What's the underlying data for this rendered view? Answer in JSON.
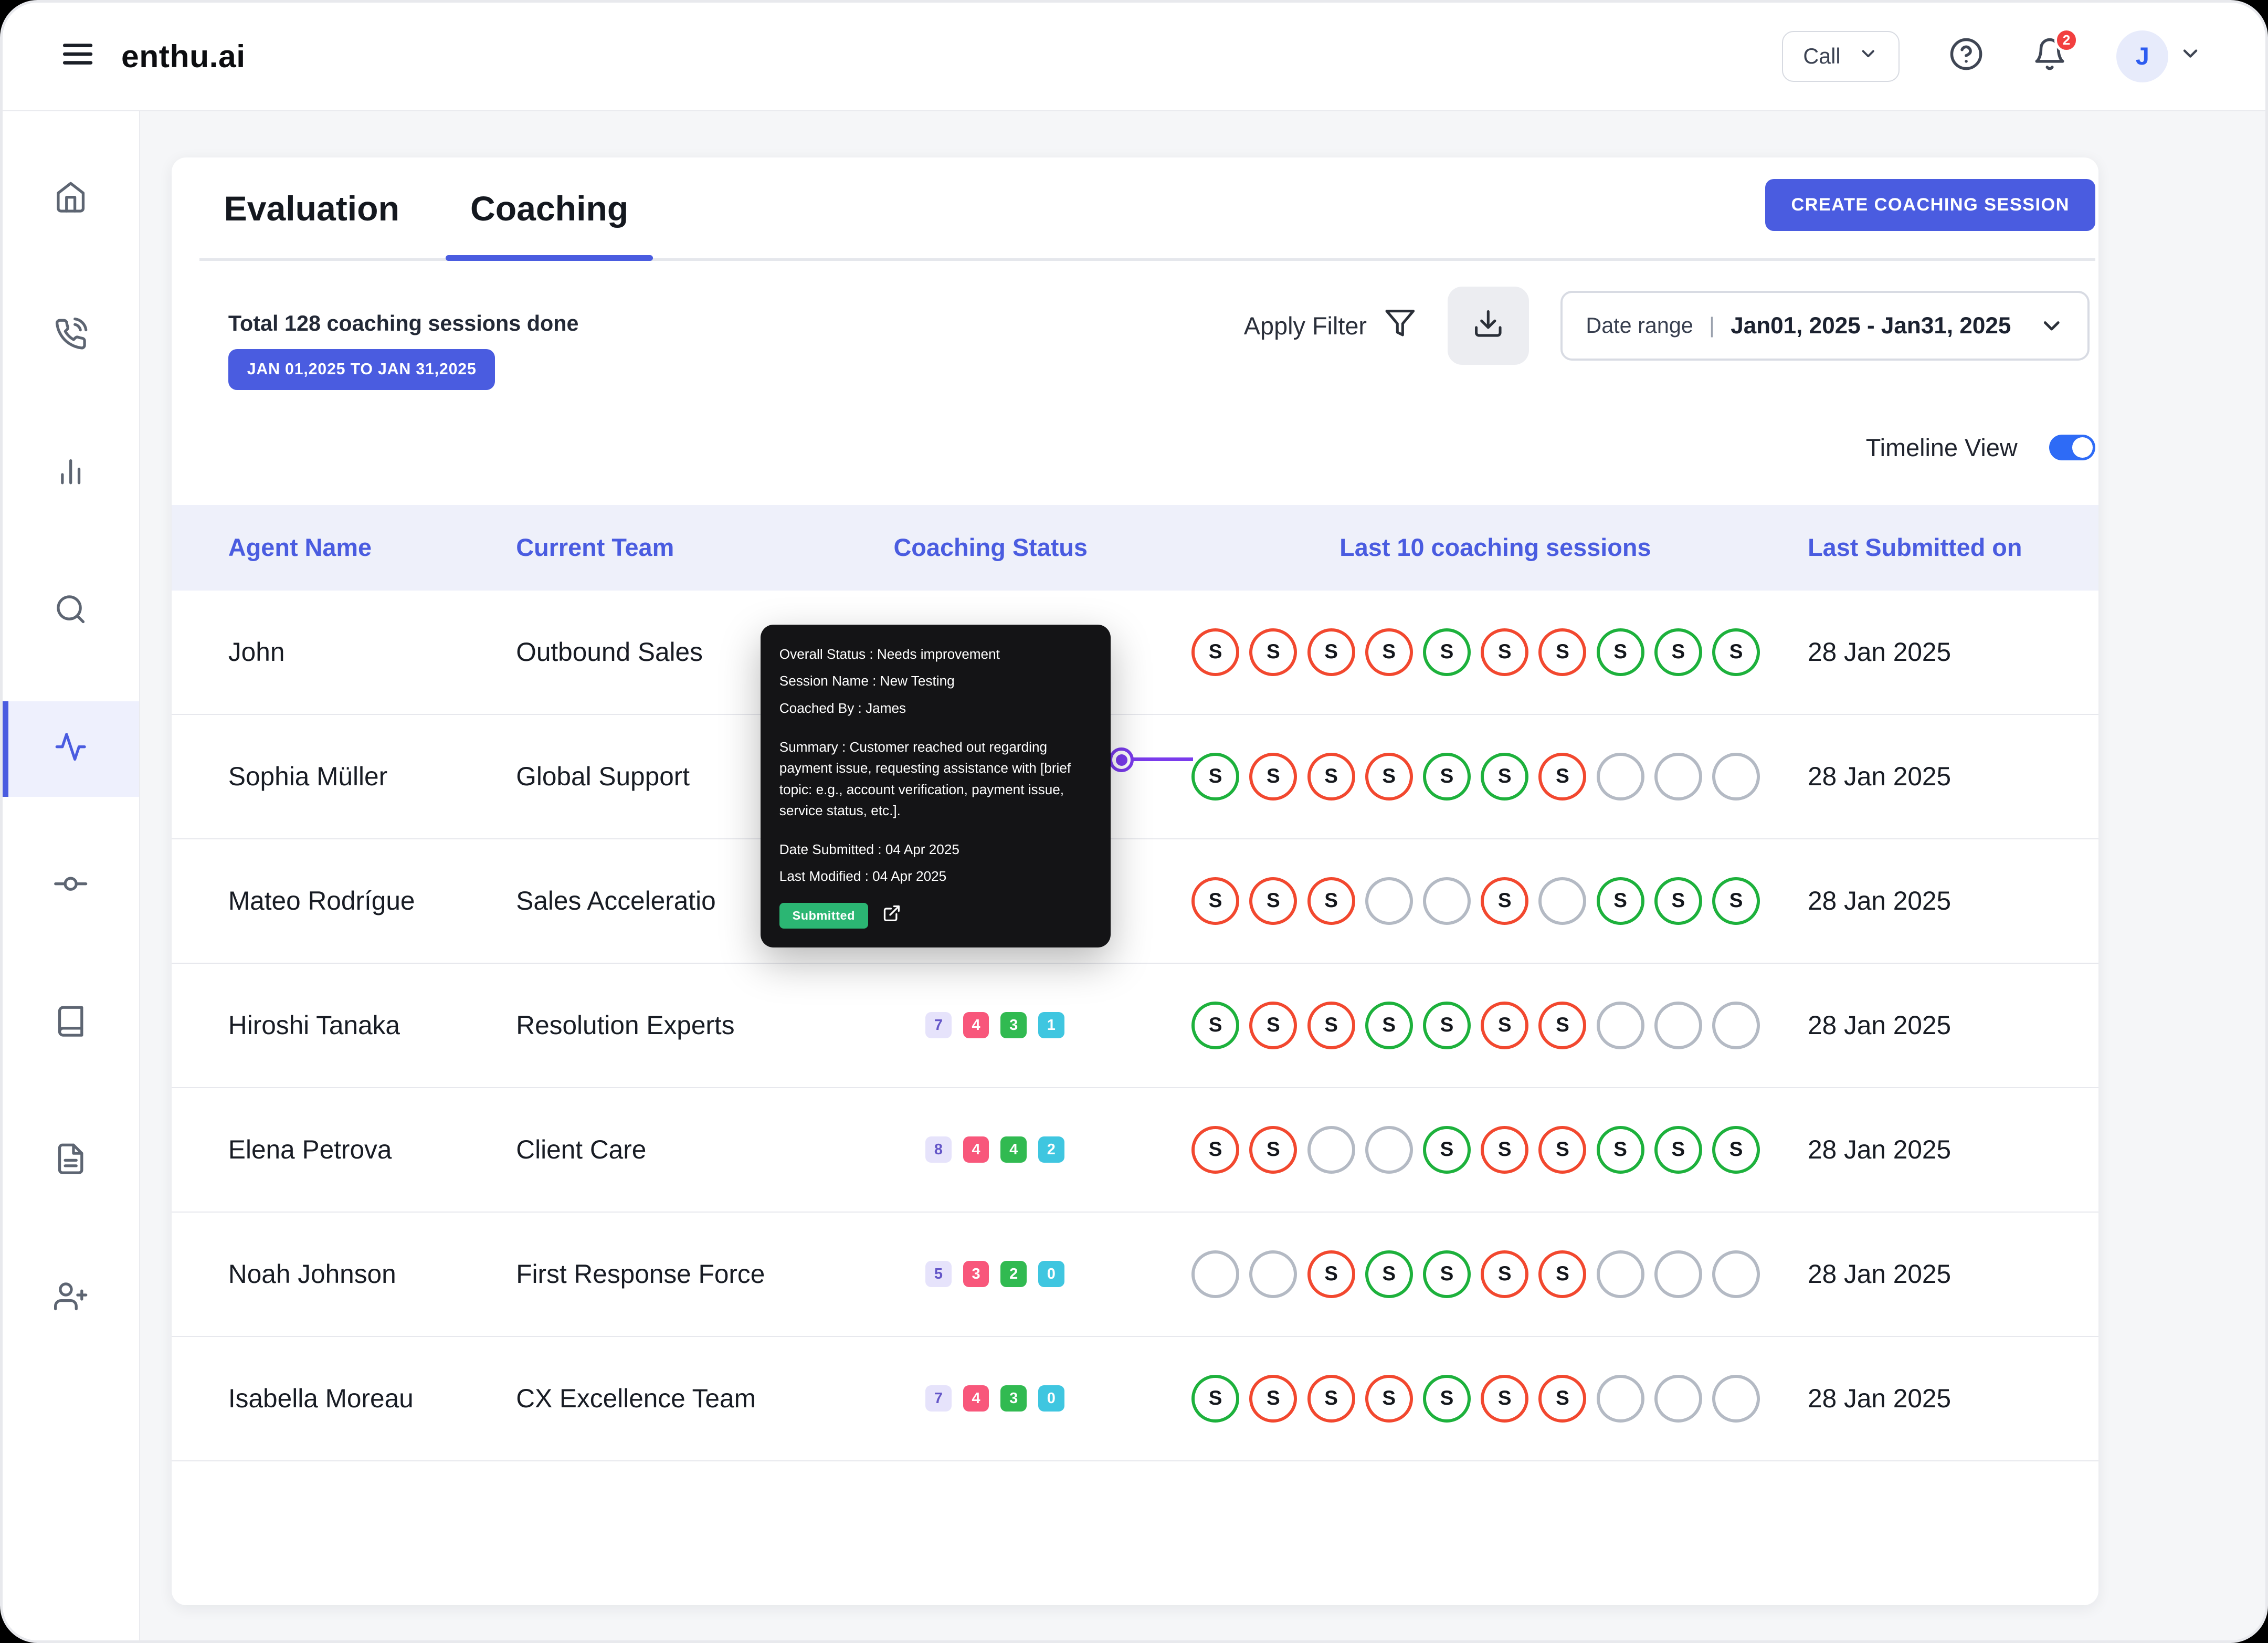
{
  "app": {
    "logo": "enthu.ai"
  },
  "topbar": {
    "call_label": "Call",
    "notification_count": "2",
    "avatar_initial": "J",
    "icons": [
      "menu-icon",
      "chevron-down-icon",
      "help-icon",
      "bell-icon"
    ]
  },
  "sidebar": {
    "icons": [
      "home-icon",
      "phone-call-icon",
      "bar-chart-icon",
      "search-icon",
      "activity-icon",
      "git-commit-icon",
      "book-icon",
      "file-text-icon",
      "user-plus-icon"
    ],
    "active_icon": "activity-icon"
  },
  "main": {
    "tabs": [
      {
        "label": "Evaluation",
        "active": false
      },
      {
        "label": "Coaching",
        "active": true
      }
    ],
    "create_session_button": "CREATE COACHING SESSION",
    "sessions_summary": "Total 128 coaching sessions done",
    "date_range_badge": "JAN 01,2025 TO JAN 31,2025",
    "apply_filter_label": "Apply Filter",
    "date_range": {
      "label": "Date range",
      "separator": "|",
      "value": "Jan01, 2025 - Jan31, 2025"
    },
    "timeline_view_label": "Timeline View",
    "timeline_view_on": true,
    "table": {
      "headers": [
        "Agent Name",
        "Current Team",
        "Coaching Status",
        "Last 10 coaching sessions",
        "Last Submitted on"
      ],
      "session_symbol": "S",
      "rows": [
        {
          "agent": "John",
          "team": "Outbound Sales",
          "status_counts": [],
          "sessions": [
            "red",
            "red",
            "red",
            "red",
            "green",
            "red",
            "red",
            "green",
            "green",
            "green"
          ],
          "last_submitted": "28 Jan 2025"
        },
        {
          "agent": "Sophia Müller",
          "team": "Global Support",
          "status_counts": [],
          "sessions": [
            "green",
            "red",
            "red",
            "red",
            "green",
            "green",
            "red",
            "empty",
            "empty",
            "empty"
          ],
          "last_submitted": "28 Jan 2025"
        },
        {
          "agent": "Mateo Rodrígue",
          "team": "Sales Acceleratio",
          "status_counts": [],
          "sessions": [
            "red",
            "red",
            "red",
            "empty",
            "empty",
            "red",
            "empty",
            "green",
            "green",
            "green"
          ],
          "last_submitted": "28 Jan 2025"
        },
        {
          "agent": "Hiroshi Tanaka",
          "team": "Resolution Experts",
          "status_counts": [
            7,
            4,
            3,
            1
          ],
          "sessions": [
            "green",
            "red",
            "red",
            "green",
            "green",
            "red",
            "red",
            "empty",
            "empty",
            "empty"
          ],
          "last_submitted": "28 Jan 2025"
        },
        {
          "agent": "Elena Petrova",
          "team": "Client Care",
          "status_counts": [
            8,
            4,
            4,
            2
          ],
          "sessions": [
            "red",
            "red",
            "empty",
            "empty",
            "green",
            "red",
            "red",
            "green",
            "green",
            "green"
          ],
          "last_submitted": "28 Jan 2025"
        },
        {
          "agent": "Noah Johnson",
          "team": "First Response Force",
          "status_counts": [
            5,
            3,
            2,
            0
          ],
          "sessions": [
            "empty",
            "empty",
            "red",
            "green",
            "green",
            "red",
            "red",
            "empty",
            "empty",
            "empty"
          ],
          "last_submitted": "28 Jan 2025"
        },
        {
          "agent": "Isabella Moreau",
          "team": "CX Excellence Team",
          "status_counts": [
            7,
            4,
            3,
            0
          ],
          "sessions": [
            "green",
            "red",
            "red",
            "red",
            "green",
            "red",
            "red",
            "empty",
            "empty",
            "empty"
          ],
          "last_submitted": "28 Jan 2025"
        }
      ]
    },
    "tooltip": {
      "lines": [
        "Overall Status : Needs improvement",
        "Session Name : New Testing",
        "Coached By : James"
      ],
      "summary": "Summary : Customer reached out regarding payment issue, requesting assistance with [brief topic: e.g., account verification, payment issue, service status, etc.].",
      "date_submitted": "Date Submitted : 04 Apr 2025",
      "last_modified": "Last Modified : 04 Apr 2025",
      "status_badge": "Submitted"
    }
  },
  "colors": {
    "primary": "#4a5ce0",
    "toggle_on": "#2e6bf6",
    "session_red": "#f2482f",
    "session_green": "#1db13c",
    "session_empty": "#b4bac4",
    "submitted_badge": "#2bb673",
    "connector_purple": "#7a3bec",
    "notification_red": "#f23f3f",
    "badge_palette": [
      {
        "bg": "#e6e3fb",
        "fg": "#6456c8"
      },
      {
        "bg": "#f8577b",
        "fg": "#ffffff"
      },
      {
        "bg": "#31ba51",
        "fg": "#ffffff"
      },
      {
        "bg": "#3fc6e0",
        "fg": "#ffffff"
      }
    ]
  }
}
